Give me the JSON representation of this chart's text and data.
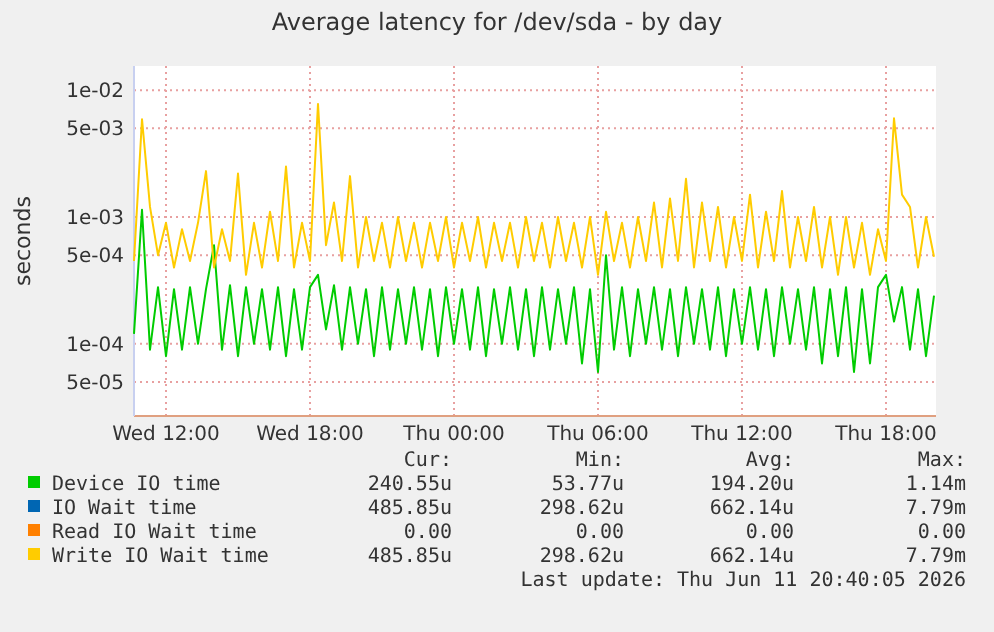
{
  "chart_data": {
    "type": "line",
    "title": "Average latency for /dev/sda - by day",
    "ylabel": "seconds",
    "log": "y",
    "grid": true,
    "legend": "bottom left",
    "marker": "none",
    "line_style": "solid",
    "xlim": [
      "2026-06-10T10:40",
      "2026-06-11T20:05"
    ],
    "xticks": [
      {
        "value": "2026-06-10T12:00",
        "label": "Wed 12:00"
      },
      {
        "value": "2026-06-10T18:00",
        "label": "Wed 18:00"
      },
      {
        "value": "2026-06-11T00:00",
        "label": "Thu 00:00"
      },
      {
        "value": "2026-06-11T06:00",
        "label": "Thu 06:00"
      },
      {
        "value": "2026-06-11T12:00",
        "label": "Thu 12:00"
      },
      {
        "value": "2026-06-11T18:00",
        "label": "Thu 18:00"
      }
    ],
    "ylim": [
      2.7e-05,
      0.0155
    ],
    "yticks": [
      {
        "value": 5e-05,
        "label": "5e-05"
      },
      {
        "value": 0.0001,
        "label": "1e-04"
      },
      {
        "value": 0.0005,
        "label": "5e-04"
      },
      {
        "value": 0.001,
        "label": "1e-03"
      },
      {
        "value": 0.005,
        "label": "5e-03"
      },
      {
        "value": 0.01,
        "label": "1e-02"
      }
    ],
    "x": [
      "2026-06-10T10:40",
      "2026-06-10T11:00",
      "2026-06-10T11:20",
      "2026-06-10T11:40",
      "2026-06-10T12:00",
      "2026-06-10T12:20",
      "2026-06-10T12:40",
      "2026-06-10T13:00",
      "2026-06-10T13:20",
      "2026-06-10T13:40",
      "2026-06-10T14:00",
      "2026-06-10T14:20",
      "2026-06-10T14:40",
      "2026-06-10T15:00",
      "2026-06-10T15:20",
      "2026-06-10T15:40",
      "2026-06-10T16:00",
      "2026-06-10T16:20",
      "2026-06-10T16:40",
      "2026-06-10T17:00",
      "2026-06-10T17:20",
      "2026-06-10T17:40",
      "2026-06-10T18:00",
      "2026-06-10T18:20",
      "2026-06-10T18:40",
      "2026-06-10T19:00",
      "2026-06-10T19:20",
      "2026-06-10T19:40",
      "2026-06-10T20:00",
      "2026-06-10T20:20",
      "2026-06-10T20:40",
      "2026-06-10T21:00",
      "2026-06-10T21:20",
      "2026-06-10T21:40",
      "2026-06-10T22:00",
      "2026-06-10T22:20",
      "2026-06-10T22:40",
      "2026-06-10T23:00",
      "2026-06-10T23:20",
      "2026-06-10T23:40",
      "2026-06-11T00:00",
      "2026-06-11T00:20",
      "2026-06-11T00:40",
      "2026-06-11T01:00",
      "2026-06-11T01:20",
      "2026-06-11T01:40",
      "2026-06-11T02:00",
      "2026-06-11T02:20",
      "2026-06-11T02:40",
      "2026-06-11T03:00",
      "2026-06-11T03:20",
      "2026-06-11T03:40",
      "2026-06-11T04:00",
      "2026-06-11T04:20",
      "2026-06-11T04:40",
      "2026-06-11T05:00",
      "2026-06-11T05:20",
      "2026-06-11T05:40",
      "2026-06-11T06:00",
      "2026-06-11T06:20",
      "2026-06-11T06:40",
      "2026-06-11T07:00",
      "2026-06-11T07:20",
      "2026-06-11T07:40",
      "2026-06-11T08:00",
      "2026-06-11T08:20",
      "2026-06-11T08:40",
      "2026-06-11T09:00",
      "2026-06-11T09:20",
      "2026-06-11T09:40",
      "2026-06-11T10:00",
      "2026-06-11T10:20",
      "2026-06-11T10:40",
      "2026-06-11T11:00",
      "2026-06-11T11:20",
      "2026-06-11T11:40",
      "2026-06-11T12:00",
      "2026-06-11T12:20",
      "2026-06-11T12:40",
      "2026-06-11T13:00",
      "2026-06-11T13:20",
      "2026-06-11T13:40",
      "2026-06-11T14:00",
      "2026-06-11T14:20",
      "2026-06-11T14:40",
      "2026-06-11T15:00",
      "2026-06-11T15:20",
      "2026-06-11T15:40",
      "2026-06-11T16:00",
      "2026-06-11T16:20",
      "2026-06-11T16:40",
      "2026-06-11T17:00",
      "2026-06-11T17:20",
      "2026-06-11T17:40",
      "2026-06-11T18:00",
      "2026-06-11T18:20",
      "2026-06-11T18:40",
      "2026-06-11T19:00",
      "2026-06-11T19:20",
      "2026-06-11T19:40",
      "2026-06-11T20:00"
    ],
    "series": [
      {
        "name": "Device IO time",
        "color": "#00cc00",
        "values": [
          0.00012,
          0.00114,
          9e-05,
          0.00028,
          8e-05,
          0.00027,
          9e-05,
          0.00028,
          0.0001,
          0.00027,
          0.0006,
          9e-05,
          0.00029,
          8e-05,
          0.00028,
          0.0001,
          0.00027,
          9e-05,
          0.00028,
          8e-05,
          0.00027,
          9e-05,
          0.00028,
          0.00035,
          0.00013,
          0.00029,
          9e-05,
          0.00028,
          0.0001,
          0.00027,
          8e-05,
          0.00028,
          9e-05,
          0.00027,
          0.0001,
          0.00028,
          9e-05,
          0.00027,
          8e-05,
          0.00028,
          0.0001,
          0.00027,
          9e-05,
          0.00028,
          8e-05,
          0.00027,
          0.0001,
          0.00028,
          9e-05,
          0.00027,
          8e-05,
          0.00028,
          9e-05,
          0.00027,
          0.0001,
          0.00028,
          7e-05,
          0.00027,
          6e-05,
          0.0005,
          9e-05,
          0.00028,
          8e-05,
          0.00027,
          0.0001,
          0.00028,
          9e-05,
          0.00027,
          8e-05,
          0.00028,
          0.0001,
          0.00027,
          9e-05,
          0.00028,
          8e-05,
          0.00027,
          0.0001,
          0.00028,
          9e-05,
          0.00027,
          8e-05,
          0.00028,
          0.0001,
          0.00027,
          9e-05,
          0.00028,
          7e-05,
          0.00027,
          8e-05,
          0.00028,
          6e-05,
          0.00027,
          7e-05,
          0.00028,
          0.00035,
          0.00015,
          0.00028,
          9e-05,
          0.00027,
          8e-05,
          0.00024
        ]
      },
      {
        "name": "IO Wait time",
        "color": "#0066b3",
        "values": [
          null,
          null,
          null,
          null,
          null,
          null,
          null,
          null,
          null,
          null,
          null,
          null,
          null,
          null,
          null,
          null,
          null,
          null,
          null,
          null,
          null,
          null,
          null,
          null,
          null,
          null,
          null,
          null,
          null,
          null,
          null,
          null,
          null,
          null,
          null,
          null,
          null,
          null,
          null,
          null,
          null,
          null,
          null,
          null,
          null,
          null,
          null,
          null,
          null,
          null,
          null,
          null,
          null,
          null,
          null,
          null,
          null,
          null,
          null,
          null,
          null,
          null,
          null,
          null,
          null,
          null,
          null,
          null,
          null,
          null,
          null,
          null,
          null,
          null,
          null,
          null,
          null,
          null,
          null,
          null,
          null,
          null,
          null,
          null,
          null,
          null,
          null,
          null,
          null,
          null,
          null,
          null,
          null,
          null,
          null,
          null,
          null,
          null,
          null,
          null,
          null
        ]
      },
      {
        "name": "Read IO Wait time",
        "color": "#ff8000",
        "values": [
          null,
          null,
          null,
          null,
          null,
          null,
          null,
          null,
          null,
          null,
          null,
          null,
          null,
          null,
          null,
          null,
          null,
          null,
          null,
          null,
          null,
          null,
          null,
          null,
          null,
          null,
          null,
          null,
          null,
          null,
          null,
          null,
          null,
          null,
          null,
          null,
          null,
          null,
          null,
          null,
          null,
          null,
          null,
          null,
          null,
          null,
          null,
          null,
          null,
          null,
          null,
          null,
          null,
          null,
          null,
          null,
          null,
          null,
          null,
          null,
          null,
          null,
          null,
          null,
          null,
          null,
          null,
          null,
          null,
          null,
          null,
          null,
          null,
          null,
          null,
          null,
          null,
          null,
          null,
          null,
          null,
          null,
          null,
          null,
          null,
          null,
          null,
          null,
          null,
          null,
          null,
          null,
          null,
          null,
          null,
          null,
          null,
          null,
          null,
          null,
          null
        ]
      },
      {
        "name": "Write IO Wait time",
        "color": "#ffcc00",
        "values": [
          0.00045,
          0.0059,
          0.0012,
          0.0005,
          0.0009,
          0.0004,
          0.0008,
          0.00045,
          0.0009,
          0.0023,
          0.0004,
          0.0008,
          0.00045,
          0.0022,
          0.00035,
          0.0009,
          0.0004,
          0.0011,
          0.00045,
          0.0025,
          0.0004,
          0.0009,
          0.00045,
          0.00779,
          0.0006,
          0.0013,
          0.00045,
          0.0021,
          0.0004,
          0.001,
          0.00045,
          0.0009,
          0.0004,
          0.001,
          0.00045,
          0.0009,
          0.0004,
          0.0009,
          0.00045,
          0.001,
          0.0004,
          0.0009,
          0.00045,
          0.001,
          0.0004,
          0.0009,
          0.00045,
          0.0009,
          0.0004,
          0.001,
          0.00045,
          0.0009,
          0.0004,
          0.001,
          0.00045,
          0.0009,
          0.0004,
          0.001,
          0.00035,
          0.0011,
          0.00045,
          0.0009,
          0.0004,
          0.001,
          0.00045,
          0.0013,
          0.0004,
          0.0014,
          0.00045,
          0.002,
          0.0004,
          0.0013,
          0.00045,
          0.0012,
          0.0004,
          0.001,
          0.00045,
          0.0015,
          0.0004,
          0.0011,
          0.00045,
          0.0016,
          0.0004,
          0.001,
          0.00045,
          0.0012,
          0.0004,
          0.001,
          0.00035,
          0.001,
          0.0004,
          0.0009,
          0.00035,
          0.0008,
          0.00045,
          0.006,
          0.0015,
          0.0012,
          0.0004,
          0.001,
          0.000486
        ]
      }
    ],
    "annotations": [
      "Cur:",
      "Min:",
      "Avg:",
      "Max:",
      "240.55u",
      "53.77u",
      "194.20u",
      "1.14m",
      "485.85u",
      "298.62u",
      "662.14u",
      "7.79m",
      "0.00",
      "0.00",
      "0.00",
      "0.00",
      "485.85u",
      "298.62u",
      "662.14u",
      "7.79m",
      "Last update: Thu Jun 11 20:40:05 2026"
    ]
  }
}
